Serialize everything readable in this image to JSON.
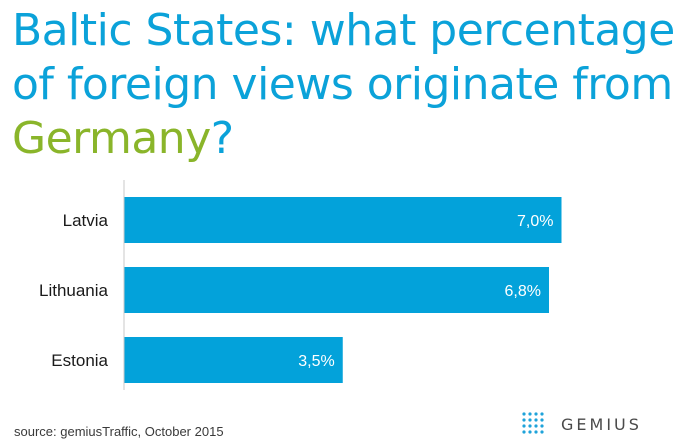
{
  "title": {
    "part1": "Baltic States: what percentage of foreign views originate from ",
    "highlight": "Germany",
    "part2": "?"
  },
  "colors": {
    "title": "#0ba2d9",
    "highlight": "#8ab52a",
    "bar": "#03a2da",
    "axis": "#c8c8c8"
  },
  "chart_data": {
    "type": "bar",
    "orientation": "horizontal",
    "categories": [
      "Latvia",
      "Lithuania",
      "Estonia"
    ],
    "values": [
      7.0,
      6.8,
      3.5
    ],
    "value_labels": [
      "7,0%",
      "6,8%",
      "3,5%"
    ],
    "xlim": [
      0,
      7.2
    ],
    "grid": false
  },
  "source": "source: gemiusTraffic, October 2015",
  "logo": {
    "text": "GEMIUS",
    "icon": "gemius-dots-icon"
  }
}
